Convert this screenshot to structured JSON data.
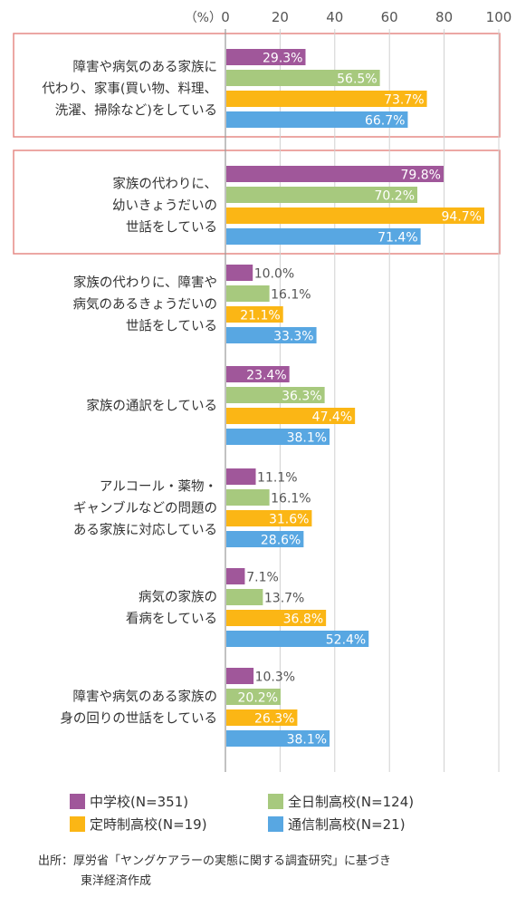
{
  "chart_data": {
    "type": "bar",
    "orientation": "horizontal",
    "unit_label": "（%）",
    "xlim": [
      0,
      100
    ],
    "xticks": [
      0,
      20,
      40,
      60,
      80,
      100
    ],
    "grid": true,
    "legend_position": "bottom",
    "categories": [
      {
        "lines": [
          "障害や病気のある家族に",
          "代わり、家事(買い物、料理、",
          "洗濯、掃除など)をしている"
        ],
        "highlighted": true
      },
      {
        "lines": [
          "家族の代わりに、",
          "幼いきょうだいの",
          "世話をしている"
        ],
        "highlighted": true
      },
      {
        "lines": [
          "家族の代わりに、障害や",
          "病気のあるきょうだいの",
          "世話をしている"
        ],
        "highlighted": false
      },
      {
        "lines": [
          "家族の通訳をしている"
        ],
        "highlighted": false
      },
      {
        "lines": [
          "アルコール・薬物・",
          "ギャンブルなどの問題の",
          "ある家族に対応している"
        ],
        "highlighted": false
      },
      {
        "lines": [
          "病気の家族の",
          "看病をしている"
        ],
        "highlighted": false
      },
      {
        "lines": [
          "障害や病気のある家族の",
          "身の回りの世話をしている"
        ],
        "highlighted": false
      }
    ],
    "series": [
      {
        "name": "中学校(N=351)",
        "color": "#a0579a",
        "values": [
          29.3,
          79.8,
          10.0,
          23.4,
          11.1,
          7.1,
          10.3
        ]
      },
      {
        "name": "全日制高校(N=124)",
        "color": "#a7c97e",
        "values": [
          56.5,
          70.2,
          16.1,
          36.3,
          16.1,
          13.7,
          20.2
        ]
      },
      {
        "name": "定時制高校(N=19)",
        "color": "#fbb615",
        "values": [
          73.7,
          94.7,
          21.1,
          47.4,
          31.6,
          36.8,
          26.3
        ]
      },
      {
        "name": "通信制高校(N=21)",
        "color": "#58a7e2",
        "values": [
          66.7,
          71.4,
          33.3,
          38.1,
          28.6,
          52.4,
          38.1
        ]
      }
    ],
    "highlight_color": "#e58a86"
  },
  "source": {
    "line1": "出所：厚労省「ヤングケアラーの実態に関する調査研究」に基づき",
    "line2": "東洋経済作成"
  }
}
